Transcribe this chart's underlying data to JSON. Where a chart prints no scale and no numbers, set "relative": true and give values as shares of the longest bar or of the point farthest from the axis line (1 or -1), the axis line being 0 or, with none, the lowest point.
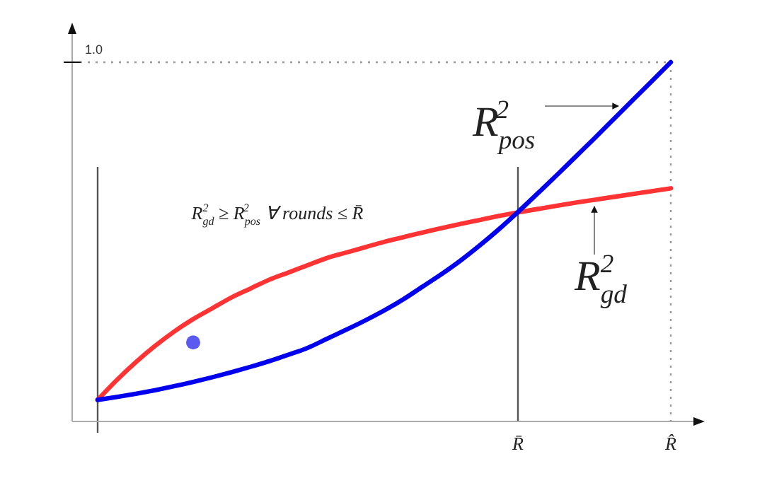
{
  "chart_data": {
    "type": "line",
    "relative": true,
    "categories": [
      null,
      null,
      null,
      null,
      null,
      null,
      null,
      null,
      null,
      null,
      null,
      null,
      null,
      null,
      null,
      null,
      null,
      null,
      null,
      null,
      null,
      null,
      "R̄",
      null,
      null,
      null,
      null,
      null,
      null,
      null,
      "R̂"
    ],
    "series": [
      {
        "name": "R$_{gd}$$^{2}$",
        "color": "#ff3333",
        "values": [
          0.06,
          0.115,
          0.165,
          0.21,
          0.25,
          0.285,
          0.315,
          0.345,
          0.37,
          0.395,
          0.415,
          0.435,
          0.455,
          0.47,
          0.485,
          0.5,
          0.513,
          0.526,
          0.538,
          0.55,
          0.561,
          0.572,
          0.582,
          0.591,
          0.6,
          0.609,
          0.617,
          0.625,
          0.633,
          0.641,
          0.649
        ]
      },
      {
        "name": "R$_{pos}$$^{2}$",
        "color": "#0000ee",
        "values": [
          0.06,
          0.068,
          0.077,
          0.087,
          0.098,
          0.11,
          0.123,
          0.137,
          0.152,
          0.168,
          0.186,
          0.205,
          0.23,
          0.255,
          0.281,
          0.309,
          0.34,
          0.375,
          0.41,
          0.448,
          0.49,
          0.535,
          0.583,
          0.633,
          0.684,
          0.736,
          0.788,
          0.841,
          0.894,
          0.947,
          1.0
        ]
      },
      {
        "type": "scatter",
        "marker": "circle",
        "color": "#5a5af0",
        "values": [
          null,
          null,
          null,
          null,
          null,
          0.22,
          null,
          null,
          null,
          null,
          null,
          null,
          null,
          null,
          null,
          null,
          null,
          null,
          null,
          null,
          null,
          null,
          null,
          null,
          null,
          null,
          null,
          null,
          null,
          null,
          null
        ]
      }
    ],
    "ref_lines": [
      {
        "axis": "y",
        "value": 1,
        "line_style": "dotted",
        "color": "#999999"
      },
      {
        "axis": "x",
        "value": "R̄",
        "line_style": "solid",
        "color": "#555555"
      },
      {
        "axis": "x",
        "value": "R̂",
        "line_style": "dotted",
        "color": "#999999"
      }
    ],
    "annotations": [
      "1.0",
      "R$_{gd}$$^{2}$ ≥ R$_{pos}$$^{2}$ ∀ rounds ≤ R̄"
    ],
    "marker": "none",
    "line_style": "solid"
  }
}
